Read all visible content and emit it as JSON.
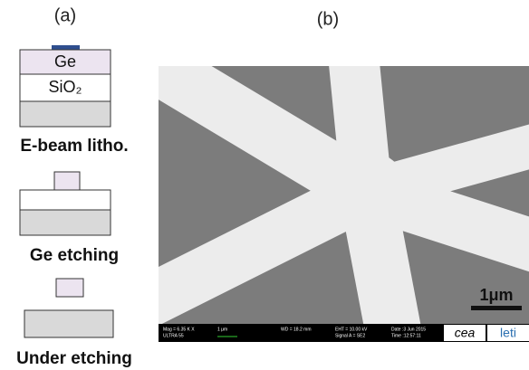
{
  "panel_a": {
    "label": "(a)",
    "ge_layer": "Ge",
    "sio2_layer": "SiO₂",
    "steps": [
      "E-beam litho.",
      "Ge etching",
      "Under etching"
    ]
  },
  "panel_b": {
    "label": "(b)",
    "scale_bar": "1μm",
    "info_bar": [
      "Mag = 6.35 K X",
      "ULTRA 55",
      "1 μm",
      "WD = 18.2 mm",
      "EHT = 10.00 kV",
      "Signal A = SE2",
      "Date :3 Jun 2015",
      "Time :12:57:11"
    ],
    "logos": [
      "cea",
      "leti"
    ]
  }
}
